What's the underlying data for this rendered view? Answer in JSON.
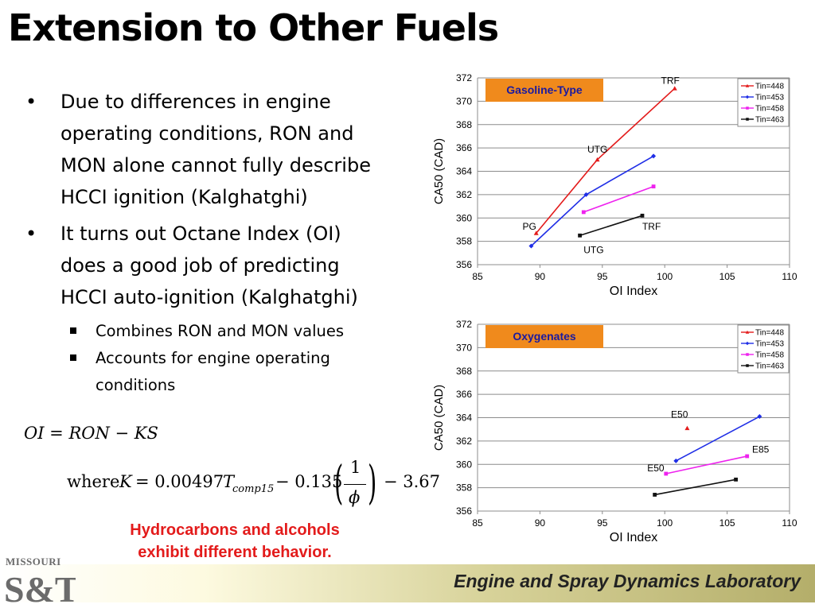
{
  "slide": {
    "title": "Extension to Other Fuels",
    "bullets": [
      {
        "text_lines": [
          "Due to differences in engine",
          "operating conditions, RON and",
          "MON alone cannot fully describe",
          "HCCI ignition (Kalghatghi)"
        ]
      },
      {
        "text_lines": [
          "It turns out Octane Index (OI)",
          "does a good job of predicting",
          "HCCI auto-ignition (Kalghatghi)"
        ]
      }
    ],
    "sub_bullets": [
      {
        "text_lines": [
          "Combines RON and MON values"
        ]
      },
      {
        "text_lines": [
          "Accounts for engine operating",
          "conditions"
        ]
      }
    ],
    "equation1": "OI = RON − KS",
    "equation2": {
      "where": "where",
      "K": "K",
      "part1": "= 0.00497",
      "T": "T",
      "sub": "comp15",
      "part2": "− 0.135",
      "num": "1",
      "den": "ϕ",
      "part3": "− 3.67"
    },
    "note_lines": [
      "Hydrocarbons and alcohols",
      "exhibit different behavior."
    ],
    "footer": "Engine and Spray Dynamics Laboratory",
    "logo": {
      "line1": "MISSOURI",
      "line2": "S&T"
    },
    "colors": {
      "note": "#e31b1b",
      "label_box": "#f08a1c",
      "label_text": "#1a1aa0"
    }
  },
  "chart_data": [
    {
      "type": "line",
      "label_box": "Gasoline-Type",
      "xlabel": "OI Index",
      "ylabel": "CA50 (CAD)",
      "xlim": [
        85,
        110
      ],
      "ylim": [
        356,
        372
      ],
      "xticks": [
        85,
        90,
        95,
        100,
        105,
        110
      ],
      "yticks": [
        356,
        358,
        360,
        362,
        364,
        366,
        368,
        370,
        372
      ],
      "grid": "horizontal",
      "legend_position": "top-right",
      "series": [
        {
          "name": "Tin=448",
          "color": "#e31b1b",
          "marker": "triangle",
          "points": [
            [
              89.7,
              358.7
            ],
            [
              94.6,
              365.0
            ],
            [
              100.8,
              371.1
            ]
          ]
        },
        {
          "name": "Tin=453",
          "color": "#1f2ee6",
          "marker": "diamond",
          "points": [
            [
              89.3,
              357.6
            ],
            [
              93.7,
              362.0
            ],
            [
              99.1,
              365.3
            ]
          ]
        },
        {
          "name": "Tin=458",
          "color": "#ee22ee",
          "marker": "square",
          "points": [
            [
              93.5,
              360.5
            ],
            [
              99.1,
              362.7
            ]
          ]
        },
        {
          "name": "Tin=463",
          "color": "#111111",
          "marker": "square",
          "points": [
            [
              93.2,
              358.5
            ],
            [
              98.2,
              360.2
            ]
          ]
        }
      ],
      "annotations": [
        {
          "text": "TRF",
          "x": 99.7,
          "y": 371.5
        },
        {
          "text": "UTG",
          "x": 93.8,
          "y": 365.6
        },
        {
          "text": "PG",
          "x": 88.6,
          "y": 359.0
        },
        {
          "text": "TRF",
          "x": 98.2,
          "y": 359.0
        },
        {
          "text": "UTG",
          "x": 93.5,
          "y": 357.0
        }
      ]
    },
    {
      "type": "line",
      "label_box": "Oxygenates",
      "xlabel": "OI Index",
      "ylabel": "CA50 (CAD)",
      "xlim": [
        85,
        110
      ],
      "ylim": [
        356,
        372
      ],
      "xticks": [
        85,
        90,
        95,
        100,
        105,
        110
      ],
      "yticks": [
        356,
        358,
        360,
        362,
        364,
        366,
        368,
        370,
        372
      ],
      "grid": "horizontal",
      "legend_position": "top-right",
      "series": [
        {
          "name": "Tin=448",
          "color": "#e31b1b",
          "marker": "triangle",
          "points": [
            [
              101.8,
              363.1
            ]
          ]
        },
        {
          "name": "Tin=453",
          "color": "#1f2ee6",
          "marker": "diamond",
          "points": [
            [
              100.9,
              360.3
            ],
            [
              107.6,
              364.1
            ]
          ]
        },
        {
          "name": "Tin=458",
          "color": "#ee22ee",
          "marker": "square",
          "points": [
            [
              100.1,
              359.2
            ],
            [
              106.6,
              360.7
            ]
          ]
        },
        {
          "name": "Tin=463",
          "color": "#111111",
          "marker": "square",
          "points": [
            [
              99.2,
              357.4
            ],
            [
              105.7,
              358.7
            ]
          ]
        }
      ],
      "annotations": [
        {
          "text": "E50",
          "x": 100.5,
          "y": 364.0
        },
        {
          "text": "E85",
          "x": 107.0,
          "y": 361.0
        },
        {
          "text": "E50",
          "x": 98.6,
          "y": 359.4
        }
      ]
    }
  ]
}
